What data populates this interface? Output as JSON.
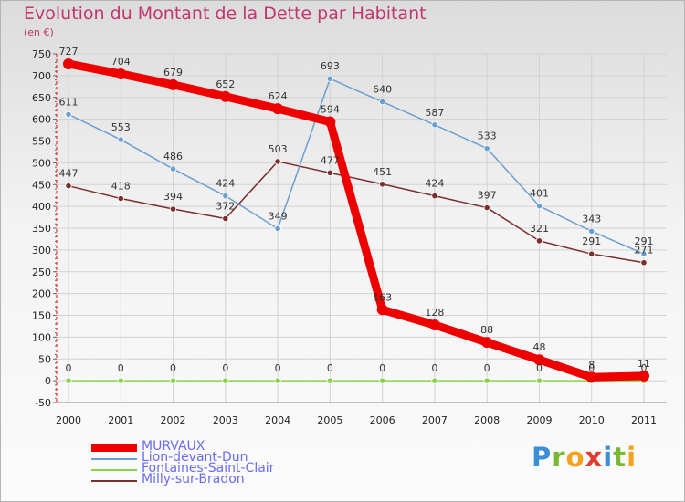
{
  "title": "Evolution du Montant de la Dette par Habitant",
  "subtitle": "(en €)",
  "brand": {
    "letters": [
      "P",
      "r",
      "o",
      "x",
      "i",
      "t",
      "i"
    ],
    "colors": [
      "#3a8fd6",
      "#7ab833",
      "#f4a21f",
      "#e23a2e",
      "#3a8fd6",
      "#7ab833",
      "#f4a21f"
    ]
  },
  "chart_data": {
    "type": "line",
    "title": "Evolution du Montant de la Dette par Habitant",
    "ylabel": "(en €)",
    "xlabel": "",
    "categories": [
      "2000",
      "2001",
      "2002",
      "2003",
      "2004",
      "2005",
      "2006",
      "2007",
      "2008",
      "2009",
      "2010",
      "2011"
    ],
    "ylim": [
      -50,
      750
    ],
    "yticks": [
      -50,
      0,
      50,
      100,
      150,
      200,
      250,
      300,
      350,
      400,
      450,
      500,
      550,
      600,
      650,
      700,
      750
    ],
    "grid": true,
    "legend": "bottom-left",
    "series": [
      {
        "name": "MURVAUX",
        "color": "#ee0000",
        "values": [
          727,
          704,
          679,
          652,
          624,
          594,
          163,
          128,
          88,
          48,
          8,
          11
        ]
      },
      {
        "name": "Lion-devant-Dun",
        "color": "#6a9fd0",
        "values": [
          611,
          553,
          486,
          424,
          349,
          693,
          640,
          587,
          533,
          401,
          343,
          291
        ]
      },
      {
        "name": "Fontaines-Saint-Clair",
        "color": "#8ad24e",
        "values": [
          0,
          0,
          0,
          0,
          0,
          0,
          0,
          0,
          0,
          0,
          0,
          0
        ]
      },
      {
        "name": "Milly-sur-Bradon",
        "color": "#7a2e2e",
        "values": [
          447,
          418,
          394,
          372,
          503,
          477,
          451,
          424,
          397,
          321,
          291,
          271
        ]
      }
    ]
  }
}
